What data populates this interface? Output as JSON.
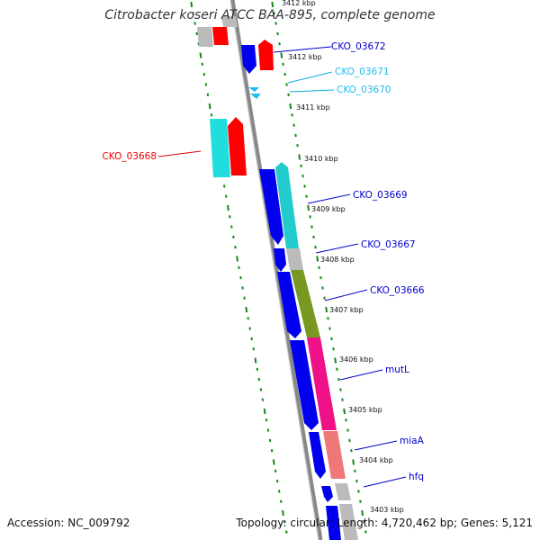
{
  "title": "Citrobacter koseri ATCC BAA-895, complete genome",
  "footer": {
    "accession": "Accession: NC_009792",
    "topology": "Topology: circular; Length: 4,720,462 bp; Genes: 5,121"
  },
  "scale_labels": [
    "3412 kbp",
    "3412 kbp",
    "3411 kbp",
    "3410 kbp",
    "3409 kbp",
    "3408 kbp",
    "3407 kbp",
    "3406 kbp",
    "3405 kbp",
    "3404 kbp",
    "3403 kbp"
  ],
  "gene_labels": [
    "CKO_03672",
    "CKO_03671",
    "CKO_03670",
    "CKO_03668",
    "CKO_03669",
    "CKO_03667",
    "CKO_03666",
    "mutL",
    "miaA",
    "hfq"
  ],
  "colors": {
    "cds_blue": "#0000ee",
    "rna_cyan": "#22bbee",
    "red": "#ff0000",
    "cyan": "#22cccc",
    "olive": "#779922",
    "pink": "#ee1188",
    "salmon": "#ee7777",
    "gray": "#bbbbbb",
    "backbone": "#888888",
    "ticks": "#118811"
  }
}
